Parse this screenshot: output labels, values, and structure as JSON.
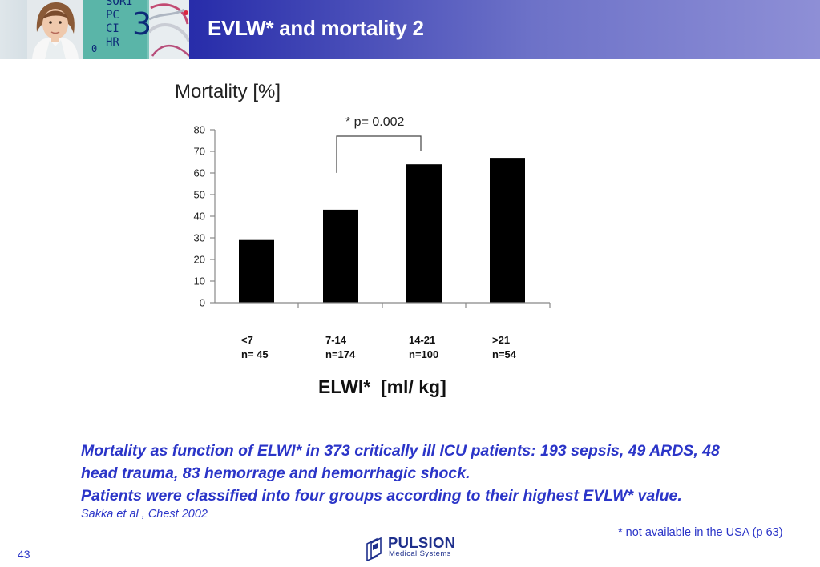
{
  "header": {
    "title": "EVLW* and mortality 2",
    "monitor_lines": [
      "SORI",
      "PC",
      "CI",
      "HR"
    ],
    "monitor_number": "3",
    "monitor_zero": "0"
  },
  "chart_data": {
    "type": "bar",
    "title": "Mortality [%]",
    "xlabel": "ELWI*  [ml/ kg]",
    "ylabel": "",
    "ylim": [
      0,
      80
    ],
    "yticks": [
      0,
      10,
      20,
      30,
      40,
      50,
      60,
      70,
      80
    ],
    "categories": [
      "<7",
      "7-14",
      "14-21",
      ">21"
    ],
    "category_n": [
      "n= 45",
      "n=174",
      "n=100",
      "n=54"
    ],
    "values": [
      29,
      43,
      64,
      67
    ],
    "annotation": {
      "text": "* p= 0.002",
      "from": "7-14",
      "to": "14-21"
    },
    "bar_color": "#000000",
    "grid": false
  },
  "caption": {
    "lines": [
      "Mortality as function of ELWI* in 373 critically ill ICU patients: 193 sepsis, 49 ARDS, 48",
      "head trauma, 83 hemorrage and hemorrhagic shock.",
      "Patients were classified into four groups according to their highest EVLW* value."
    ],
    "citation": "Sakka et al , Chest 2002"
  },
  "footnote": "* not available in the USA (p 63)",
  "page_number": "43",
  "logo": {
    "name": "PULSION",
    "subtitle": "Medical Systems"
  },
  "colors": {
    "header_dark": "#0d109a",
    "header_light": "#8e8fd6",
    "text_blue": "#2b35c8",
    "logo_blue": "#1e2f8c"
  }
}
